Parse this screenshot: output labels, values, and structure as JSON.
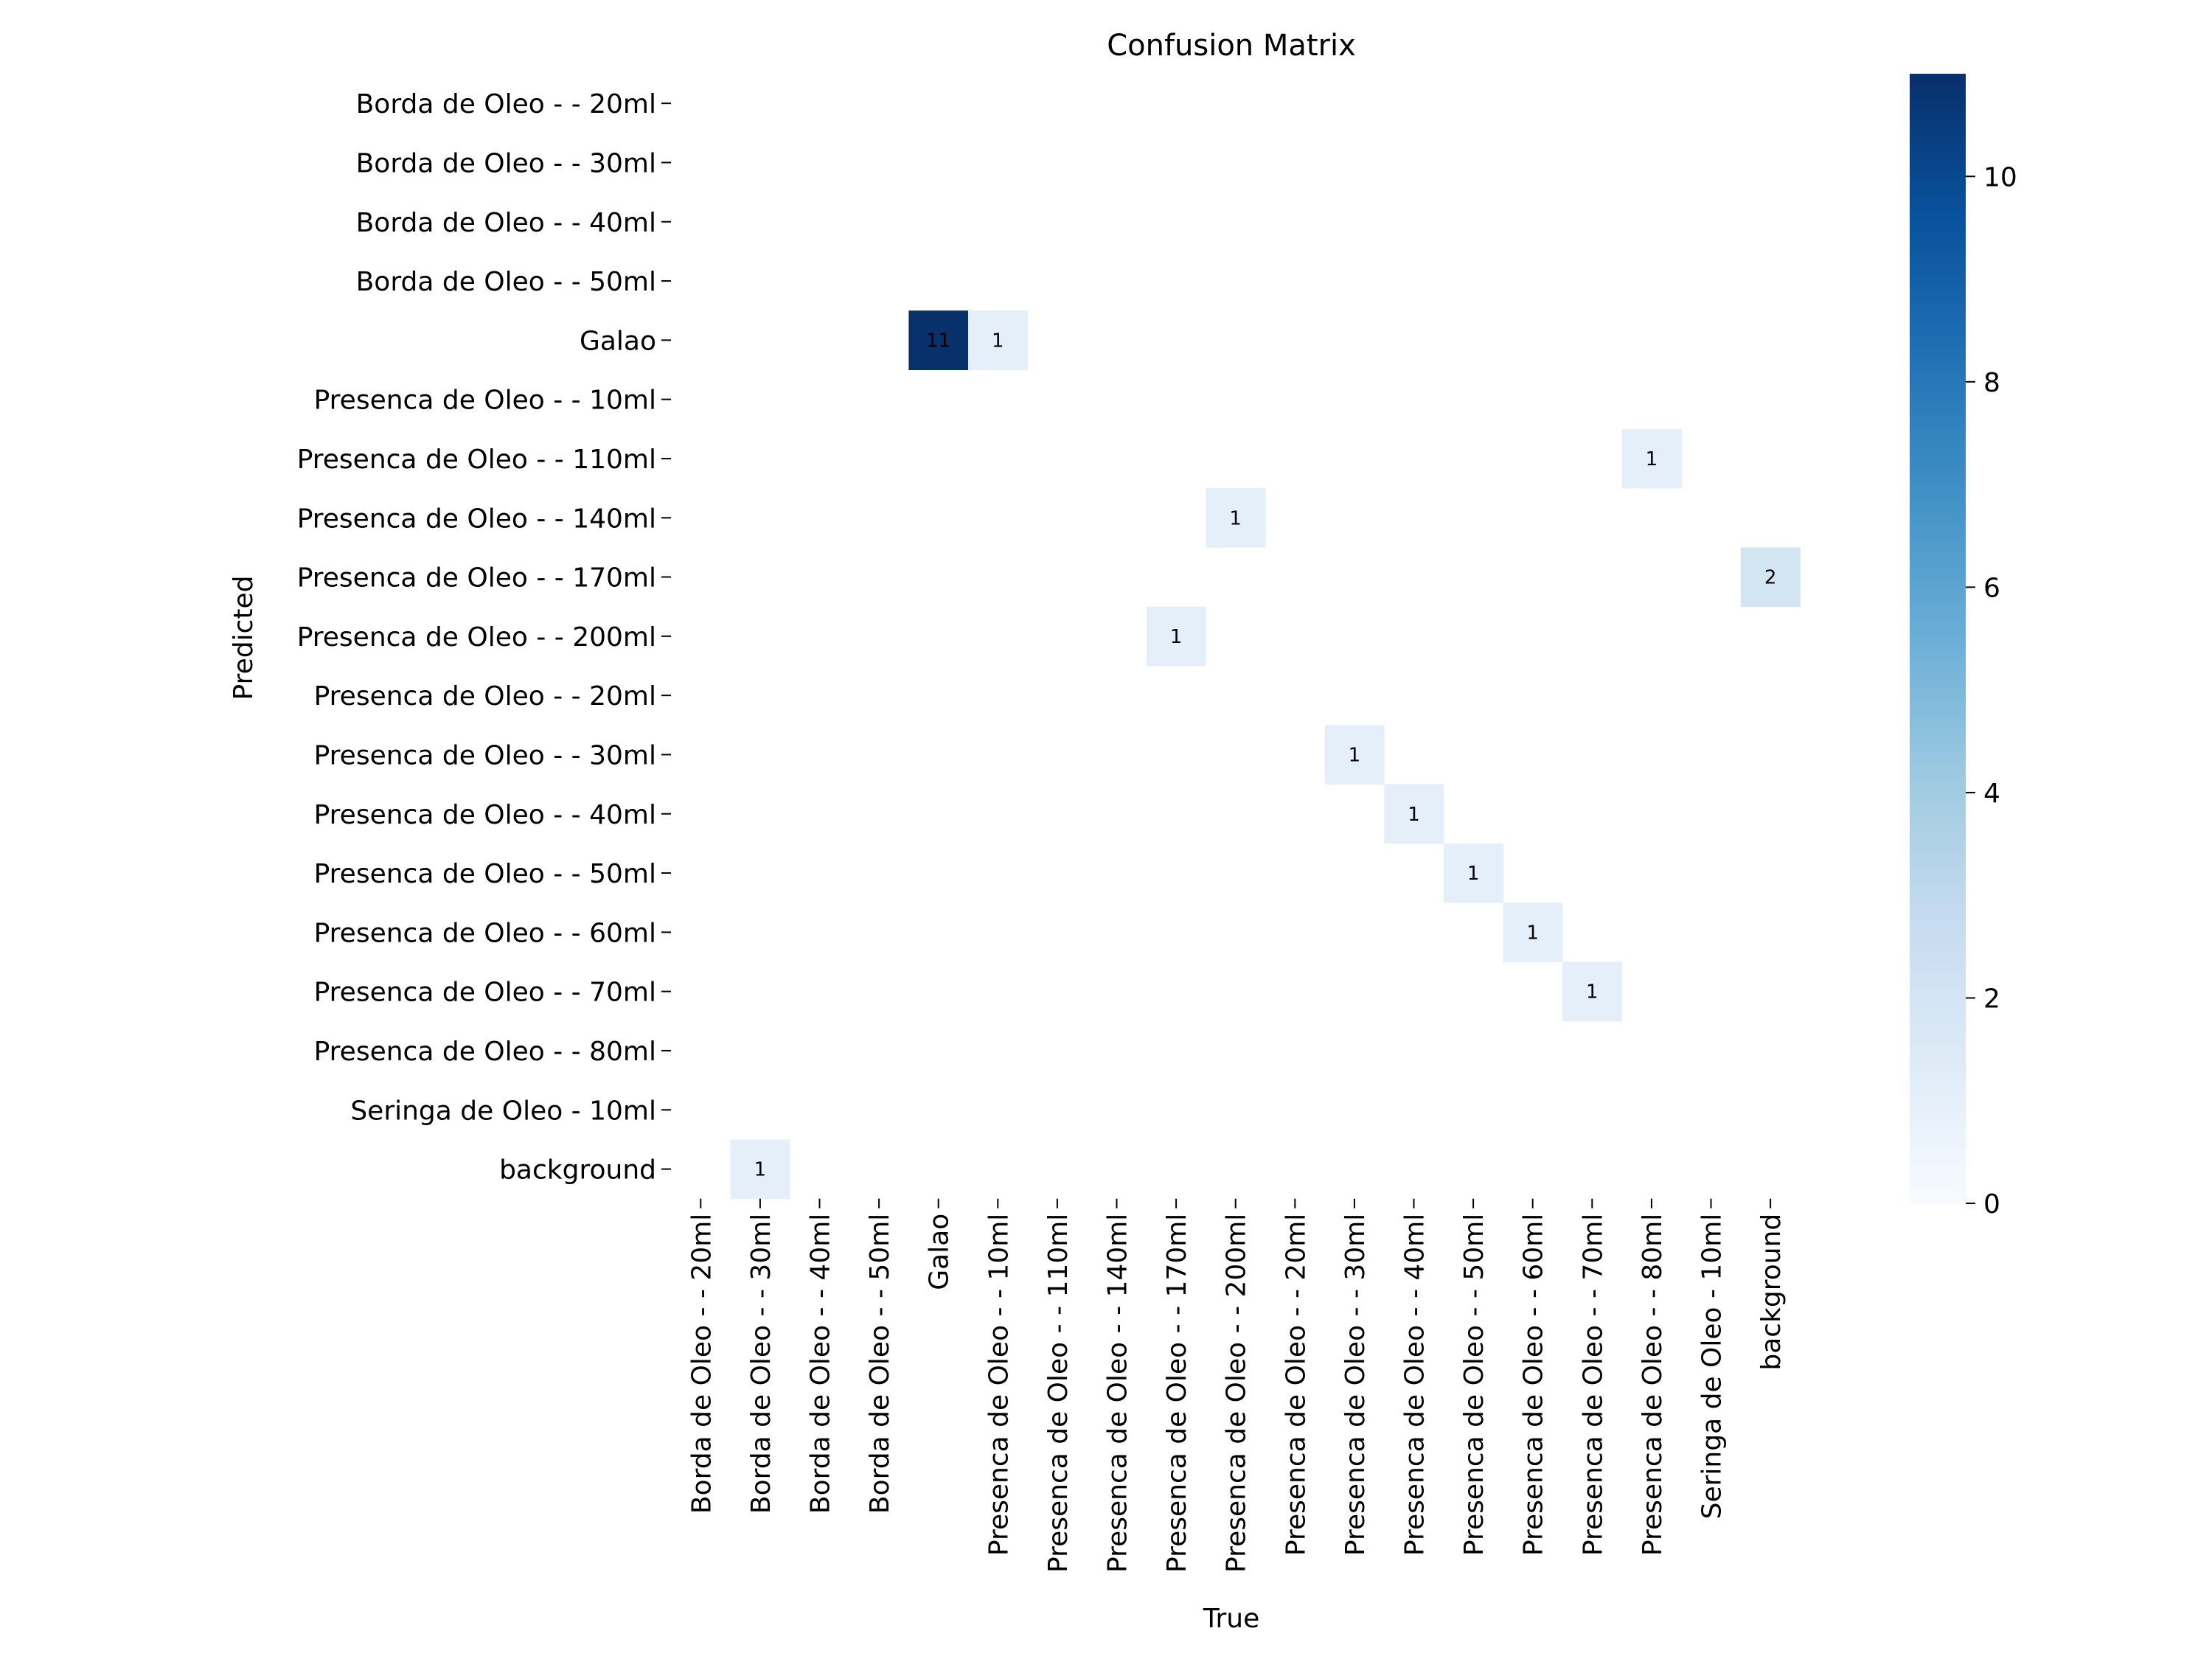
{
  "chart_data": {
    "type": "heatmap",
    "title": "Confusion Matrix",
    "xlabel": "True",
    "ylabel": "Predicted",
    "x_categories": [
      "Borda de Oleo - - 20ml",
      "Borda de Oleo - - 30ml",
      "Borda de Oleo - - 40ml",
      "Borda de Oleo - - 50ml",
      "Galao",
      "Presenca de Oleo - - 10ml",
      "Presenca de Oleo - - 110ml",
      "Presenca de Oleo - - 140ml",
      "Presenca de Oleo - - 170ml",
      "Presenca de Oleo - - 200ml",
      "Presenca de Oleo - - 20ml",
      "Presenca de Oleo - - 30ml",
      "Presenca de Oleo - - 40ml",
      "Presenca de Oleo - - 50ml",
      "Presenca de Oleo - - 60ml",
      "Presenca de Oleo - - 70ml",
      "Presenca de Oleo - - 80ml",
      "Seringa de Oleo - 10ml",
      "background"
    ],
    "y_categories": [
      "Borda de Oleo - - 20ml",
      "Borda de Oleo - - 30ml",
      "Borda de Oleo - - 40ml",
      "Borda de Oleo - - 50ml",
      "Galao",
      "Presenca de Oleo - - 10ml",
      "Presenca de Oleo - - 110ml",
      "Presenca de Oleo - - 140ml",
      "Presenca de Oleo - - 170ml",
      "Presenca de Oleo - - 200ml",
      "Presenca de Oleo - - 20ml",
      "Presenca de Oleo - - 30ml",
      "Presenca de Oleo - - 40ml",
      "Presenca de Oleo - - 50ml",
      "Presenca de Oleo - - 60ml",
      "Presenca de Oleo - - 70ml",
      "Presenca de Oleo - - 80ml",
      "Seringa de Oleo - 10ml",
      "background"
    ],
    "matrix": [
      [
        0,
        0,
        0,
        0,
        0,
        0,
        0,
        0,
        0,
        0,
        0,
        0,
        0,
        0,
        0,
        0,
        0,
        0,
        0
      ],
      [
        0,
        0,
        0,
        0,
        0,
        0,
        0,
        0,
        0,
        0,
        0,
        0,
        0,
        0,
        0,
        0,
        0,
        0,
        0
      ],
      [
        0,
        0,
        0,
        0,
        0,
        0,
        0,
        0,
        0,
        0,
        0,
        0,
        0,
        0,
        0,
        0,
        0,
        0,
        0
      ],
      [
        0,
        0,
        0,
        0,
        0,
        0,
        0,
        0,
        0,
        0,
        0,
        0,
        0,
        0,
        0,
        0,
        0,
        0,
        0
      ],
      [
        0,
        0,
        0,
        0,
        11,
        1,
        0,
        0,
        0,
        0,
        0,
        0,
        0,
        0,
        0,
        0,
        0,
        0,
        0
      ],
      [
        0,
        0,
        0,
        0,
        0,
        0,
        0,
        0,
        0,
        0,
        0,
        0,
        0,
        0,
        0,
        0,
        0,
        0,
        0
      ],
      [
        0,
        0,
        0,
        0,
        0,
        0,
        0,
        0,
        0,
        0,
        0,
        0,
        0,
        0,
        0,
        0,
        1,
        0,
        0
      ],
      [
        0,
        0,
        0,
        0,
        0,
        0,
        0,
        0,
        0,
        1,
        0,
        0,
        0,
        0,
        0,
        0,
        0,
        0,
        0
      ],
      [
        0,
        0,
        0,
        0,
        0,
        0,
        0,
        0,
        0,
        0,
        0,
        0,
        0,
        0,
        0,
        0,
        0,
        0,
        2
      ],
      [
        0,
        0,
        0,
        0,
        0,
        0,
        0,
        0,
        1,
        0,
        0,
        0,
        0,
        0,
        0,
        0,
        0,
        0,
        0
      ],
      [
        0,
        0,
        0,
        0,
        0,
        0,
        0,
        0,
        0,
        0,
        0,
        0,
        0,
        0,
        0,
        0,
        0,
        0,
        0
      ],
      [
        0,
        0,
        0,
        0,
        0,
        0,
        0,
        0,
        0,
        0,
        0,
        1,
        0,
        0,
        0,
        0,
        0,
        0,
        0
      ],
      [
        0,
        0,
        0,
        0,
        0,
        0,
        0,
        0,
        0,
        0,
        0,
        0,
        1,
        0,
        0,
        0,
        0,
        0,
        0
      ],
      [
        0,
        0,
        0,
        0,
        0,
        0,
        0,
        0,
        0,
        0,
        0,
        0,
        0,
        1,
        0,
        0,
        0,
        0,
        0
      ],
      [
        0,
        0,
        0,
        0,
        0,
        0,
        0,
        0,
        0,
        0,
        0,
        0,
        0,
        0,
        1,
        0,
        0,
        0,
        0
      ],
      [
        0,
        0,
        0,
        0,
        0,
        0,
        0,
        0,
        0,
        0,
        0,
        0,
        0,
        0,
        0,
        1,
        0,
        0,
        0
      ],
      [
        0,
        0,
        0,
        0,
        0,
        0,
        0,
        0,
        0,
        0,
        0,
        0,
        0,
        0,
        0,
        0,
        0,
        0,
        0
      ],
      [
        0,
        0,
        0,
        0,
        0,
        0,
        0,
        0,
        0,
        0,
        0,
        0,
        0,
        0,
        0,
        0,
        0,
        0,
        0
      ],
      [
        0,
        1,
        0,
        0,
        0,
        0,
        0,
        0,
        0,
        0,
        0,
        0,
        0,
        0,
        0,
        0,
        0,
        0,
        0
      ]
    ],
    "zero_cells_annotated": false,
    "colormap": "Blues",
    "colormap_stops": [
      "#f7fbff",
      "#deebf7",
      "#c6dbef",
      "#9ecae1",
      "#6baed6",
      "#4292c6",
      "#2171b5",
      "#08519c",
      "#08306b"
    ],
    "vmin": 0,
    "vmax": 11,
    "colorbar_ticks": [
      0,
      2,
      4,
      6,
      8,
      10
    ],
    "colorbar_tick_labels": [
      "0",
      "2",
      "4",
      "6",
      "8",
      "10"
    ],
    "grid": false,
    "colorbar_placement": "right"
  }
}
